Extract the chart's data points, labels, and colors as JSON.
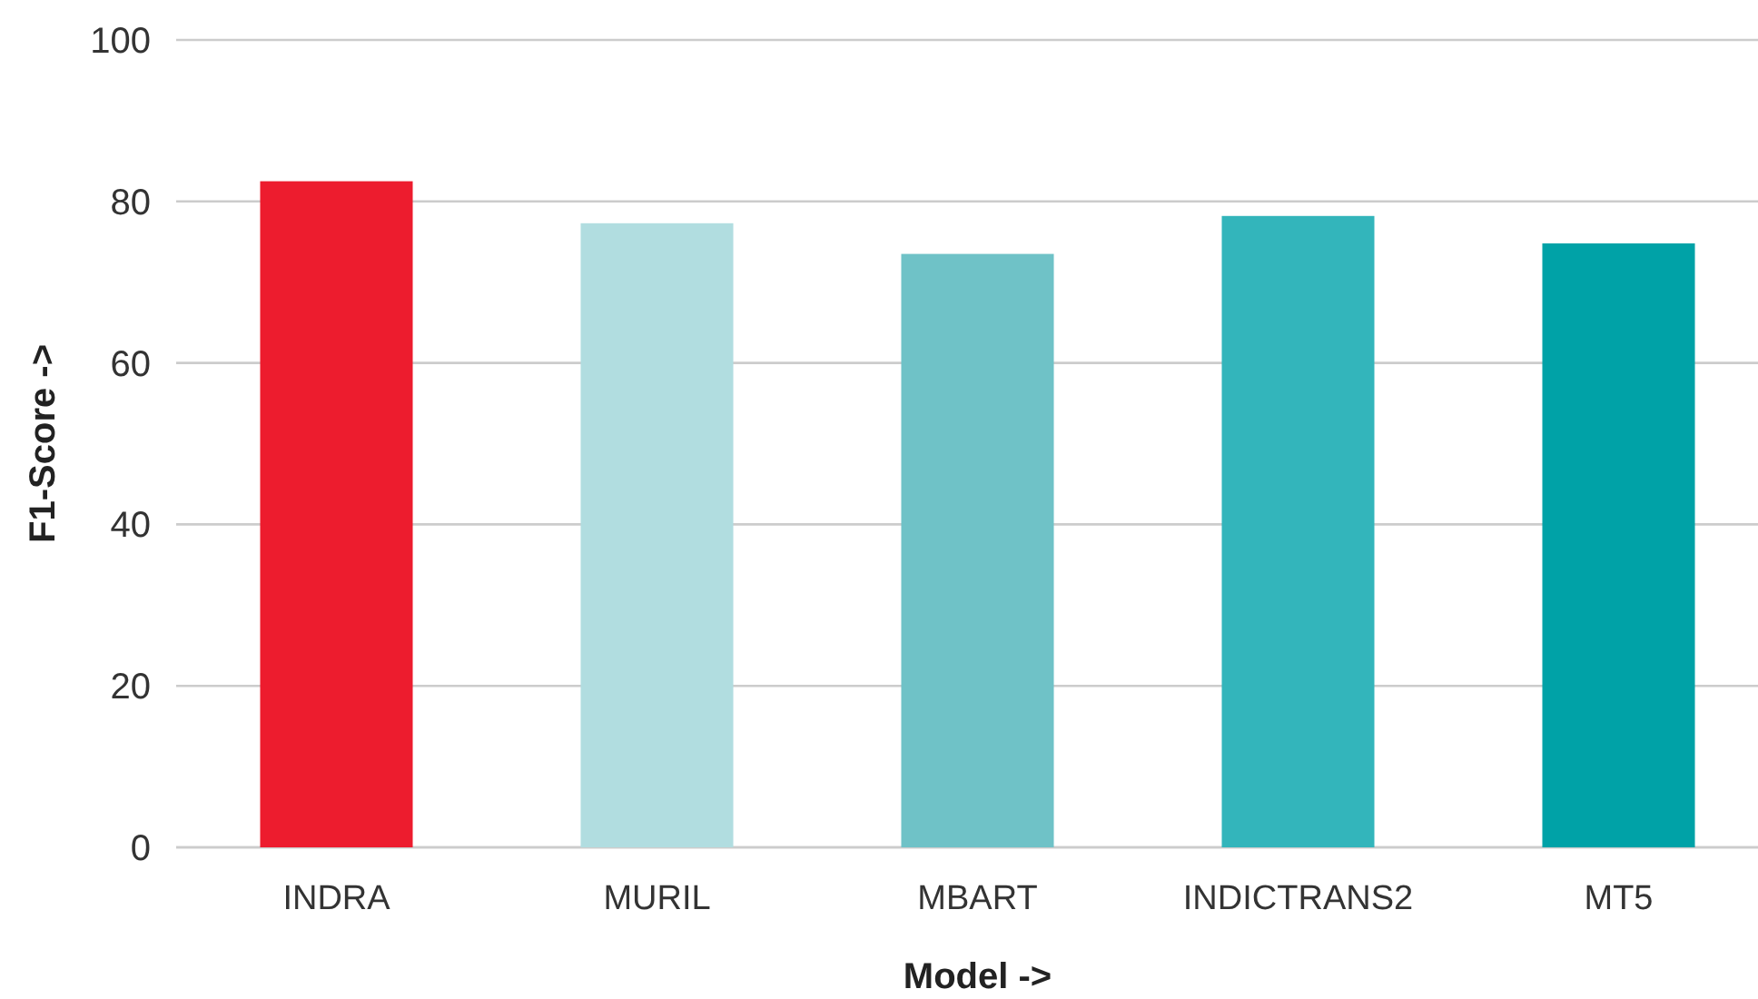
{
  "chart_data": {
    "type": "bar",
    "categories": [
      "INDRA",
      "MURIL",
      "MBART",
      "INDICTRANS2",
      "MT5"
    ],
    "values": [
      82.5,
      77.3,
      73.5,
      78.2,
      74.8
    ],
    "colors": [
      "#ed1c2e",
      "#b1dde0",
      "#6fc2c7",
      "#33b5bb",
      "#00a2a7"
    ],
    "xlabel": "Model ->",
    "ylabel": "F1-Score ->",
    "ylim": [
      0,
      100
    ],
    "yticks": [
      0,
      20,
      40,
      60,
      80,
      100
    ],
    "grid": "y"
  }
}
